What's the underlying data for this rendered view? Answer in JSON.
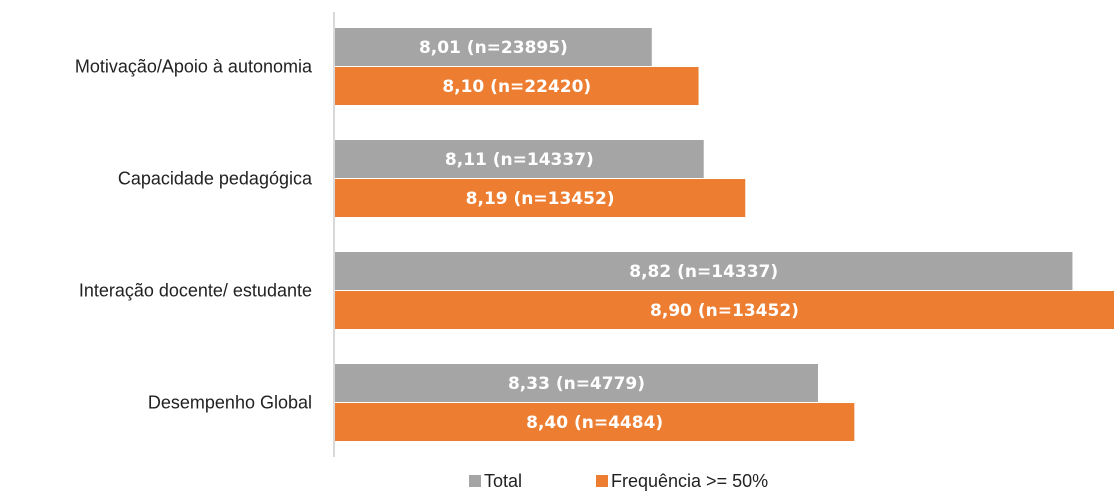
{
  "chart_data": {
    "type": "bar",
    "orientation": "horizontal",
    "categories": [
      "Motivação/Apoio à autonomia",
      "Capacidade pedagógica",
      "Interação docente/ estudante",
      "Desempenho Global"
    ],
    "series": [
      {
        "name": "Total",
        "color": "#a5a5a5",
        "values": [
          8.01,
          8.11,
          8.82,
          8.33
        ],
        "labels": [
          "8,01 (n=23895)",
          "8,11 (n=14337)",
          "8,82 (n=14337)",
          "8,33 (n=4779)"
        ]
      },
      {
        "name": "Frequência >= 50%",
        "color": "#ed7d31",
        "values": [
          8.1,
          8.19,
          8.9,
          8.4
        ],
        "labels": [
          "8,10 (n=22420)",
          "8,19 (n=13452)",
          "8,90 (n=13452)",
          "8,40 (n=4484)"
        ]
      }
    ],
    "xlim": [
      7.4,
      8.9
    ],
    "grid": false,
    "legend_position": "bottom"
  }
}
